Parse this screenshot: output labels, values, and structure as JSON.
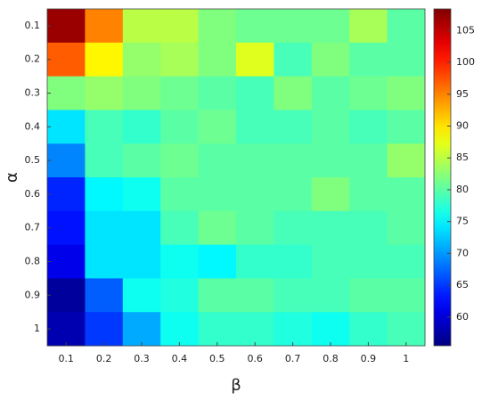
{
  "chart_data": {
    "type": "heatmap",
    "x_categories": [
      "0.1",
      "0.2",
      "0.3",
      "0.4",
      "0.5",
      "0.6",
      "0.7",
      "0.8",
      "0.9",
      "1"
    ],
    "y_categories": [
      "0.1",
      "0.2",
      "0.3",
      "0.4",
      "0.5",
      "0.6",
      "0.7",
      "0.8",
      "0.9",
      "1"
    ],
    "xlabel": "β",
    "ylabel": "α",
    "values": [
      [
        107,
        95,
        85,
        85,
        82,
        81,
        81,
        81,
        84,
        80
      ],
      [
        97,
        89,
        83,
        84,
        82,
        87,
        79,
        82,
        80,
        80
      ],
      [
        82,
        83,
        82,
        81,
        80,
        79,
        82,
        80,
        81,
        82
      ],
      [
        74,
        79,
        78,
        80,
        81,
        79,
        79,
        80,
        79,
        80
      ],
      [
        69,
        79,
        80,
        81,
        80,
        80,
        80,
        80,
        80,
        83
      ],
      [
        64,
        75,
        76,
        80,
        80,
        80,
        80,
        82,
        80,
        80
      ],
      [
        63,
        74,
        74,
        79,
        81,
        80,
        79,
        79,
        79,
        80
      ],
      [
        61,
        74,
        74,
        76,
        75,
        78,
        78,
        79,
        79,
        79
      ],
      [
        57,
        67,
        76,
        77,
        80,
        80,
        79,
        79,
        80,
        80
      ],
      [
        58,
        65,
        71,
        76,
        78,
        78,
        77,
        76,
        78,
        79
      ]
    ],
    "colormap": "jet",
    "clim": [
      55.5,
      108.4
    ],
    "cticks": [
      60,
      65,
      70,
      75,
      80,
      85,
      90,
      95,
      100,
      105
    ]
  }
}
